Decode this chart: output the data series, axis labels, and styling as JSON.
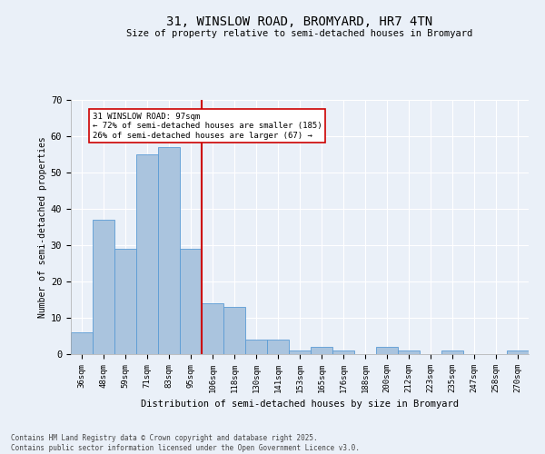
{
  "title": "31, WINSLOW ROAD, BROMYARD, HR7 4TN",
  "subtitle": "Size of property relative to semi-detached houses in Bromyard",
  "xlabel": "Distribution of semi-detached houses by size in Bromyard",
  "ylabel": "Number of semi-detached properties",
  "footer_line1": "Contains HM Land Registry data © Crown copyright and database right 2025.",
  "footer_line2": "Contains public sector information licensed under the Open Government Licence v3.0.",
  "annotation_title": "31 WINSLOW ROAD: 97sqm",
  "annotation_line2": "← 72% of semi-detached houses are smaller (185)",
  "annotation_line3": "26% of semi-detached houses are larger (67) →",
  "bar_labels": [
    "36sqm",
    "48sqm",
    "59sqm",
    "71sqm",
    "83sqm",
    "95sqm",
    "106sqm",
    "118sqm",
    "130sqm",
    "141sqm",
    "153sqm",
    "165sqm",
    "176sqm",
    "188sqm",
    "200sqm",
    "212sqm",
    "223sqm",
    "235sqm",
    "247sqm",
    "258sqm",
    "270sqm"
  ],
  "bar_values": [
    6,
    37,
    29,
    55,
    57,
    29,
    14,
    13,
    4,
    4,
    1,
    2,
    1,
    0,
    2,
    1,
    0,
    1,
    0,
    0,
    1
  ],
  "bar_color": "#aac4de",
  "bar_edge_color": "#5b9bd5",
  "marker_color": "#cc0000",
  "bg_color": "#eaf0f8",
  "plot_bg_color": "#eaf0f8",
  "grid_color": "#ffffff",
  "ylim": [
    0,
    70
  ],
  "yticks": [
    0,
    10,
    20,
    30,
    40,
    50,
    60,
    70
  ],
  "annotation_box_color": "#ffffff",
  "annotation_box_edge": "#cc0000"
}
